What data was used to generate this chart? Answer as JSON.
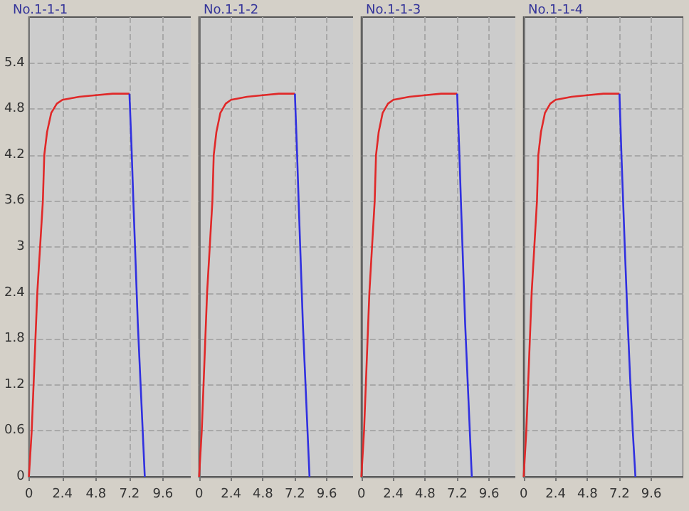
{
  "chart_data": [
    {
      "type": "line",
      "title": "No.1-1-1",
      "xlim": [
        0,
        12
      ],
      "xticks": [
        0,
        2.4,
        4.8,
        7.2,
        9.6
      ],
      "ylim": [
        0,
        6
      ],
      "yticks": [
        0,
        0.6,
        1.2,
        1.8,
        2.4,
        3,
        3.6,
        4.2,
        4.8,
        5.4
      ],
      "grid": true,
      "marker": "none",
      "series": [
        {
          "color": "#e02828",
          "x": [
            0,
            0.2,
            0.4,
            0.6,
            0.8,
            1.0,
            1.1,
            1.3,
            1.6,
            2.0,
            2.4,
            3.6,
            4.8,
            6.0,
            7.2
          ],
          "values": [
            0,
            0.6,
            1.5,
            2.4,
            3.0,
            3.6,
            4.2,
            4.5,
            4.75,
            4.87,
            4.92,
            4.96,
            4.98,
            5.0,
            5.0
          ]
        },
        {
          "color": "#3030e0",
          "x": [
            7.2,
            7.35,
            7.5,
            7.6,
            7.8,
            8.0,
            8.3
          ],
          "values": [
            5.0,
            4.3,
            3.5,
            3.0,
            2.0,
            1.2,
            0
          ]
        }
      ]
    },
    {
      "type": "line",
      "title": "No.1-1-2",
      "xlim": [
        0,
        12
      ],
      "xticks": [
        0,
        2.4,
        4.8,
        7.2,
        9.6
      ],
      "ylim": [
        0,
        6
      ],
      "yticks": [
        0,
        0.6,
        1.2,
        1.8,
        2.4,
        3,
        3.6,
        4.2,
        4.8,
        5.4
      ],
      "grid": true,
      "marker": "none",
      "tick_labels": "x",
      "series": [
        {
          "color": "#e02828",
          "x": [
            0,
            0.2,
            0.4,
            0.6,
            0.8,
            1.0,
            1.1,
            1.3,
            1.6,
            2.0,
            2.4,
            3.6,
            4.8,
            6.0,
            7.2
          ],
          "values": [
            0,
            0.6,
            1.5,
            2.4,
            3.0,
            3.6,
            4.2,
            4.5,
            4.75,
            4.87,
            4.92,
            4.96,
            4.98,
            5.0,
            5.0
          ]
        },
        {
          "color": "#3030e0",
          "x": [
            7.2,
            7.35,
            7.5,
            7.6,
            7.8,
            8.0,
            8.3
          ],
          "values": [
            5.0,
            4.3,
            3.5,
            3.0,
            2.0,
            1.2,
            0
          ]
        }
      ]
    },
    {
      "type": "line",
      "title": "No.1-1-3",
      "xlim": [
        0,
        12
      ],
      "xticks": [
        0,
        2.4,
        4.8,
        7.2,
        9.6
      ],
      "ylim": [
        0,
        6
      ],
      "yticks": [
        0,
        0.6,
        1.2,
        1.8,
        2.4,
        3,
        3.6,
        4.2,
        4.8,
        5.4
      ],
      "grid": true,
      "marker": "none",
      "tick_labels": "x",
      "series": [
        {
          "color": "#e02828",
          "x": [
            0,
            0.2,
            0.4,
            0.6,
            0.8,
            1.0,
            1.1,
            1.3,
            1.6,
            2.0,
            2.4,
            3.6,
            4.8,
            6.0,
            7.2
          ],
          "values": [
            0,
            0.6,
            1.5,
            2.4,
            3.0,
            3.6,
            4.2,
            4.5,
            4.75,
            4.87,
            4.92,
            4.96,
            4.98,
            5.0,
            5.0
          ]
        },
        {
          "color": "#3030e0",
          "x": [
            7.2,
            7.35,
            7.5,
            7.6,
            7.8,
            8.0,
            8.3
          ],
          "values": [
            5.0,
            4.3,
            3.5,
            3.0,
            2.0,
            1.2,
            0
          ]
        }
      ]
    },
    {
      "type": "line",
      "title": "No.1-1-4",
      "xlim": [
        0,
        12
      ],
      "xticks": [
        0,
        2.4,
        4.8,
        7.2,
        9.6
      ],
      "ylim": [
        0,
        6
      ],
      "yticks": [
        0,
        0.6,
        1.2,
        1.8,
        2.4,
        3,
        3.6,
        4.2,
        4.8,
        5.4
      ],
      "grid": true,
      "marker": "none",
      "tick_labels": "x",
      "series": [
        {
          "color": "#e02828",
          "x": [
            0,
            0.2,
            0.4,
            0.6,
            0.8,
            1.0,
            1.1,
            1.3,
            1.6,
            2.0,
            2.4,
            3.6,
            4.8,
            6.0,
            7.2
          ],
          "values": [
            0,
            0.6,
            1.5,
            2.4,
            3.0,
            3.6,
            4.2,
            4.5,
            4.75,
            4.87,
            4.92,
            4.96,
            4.98,
            5.0,
            5.0
          ]
        },
        {
          "color": "#3030e0",
          "x": [
            7.2,
            7.35,
            7.6,
            7.8,
            8.0,
            8.2,
            8.4
          ],
          "values": [
            5.0,
            4.2,
            3.0,
            2.1,
            1.3,
            0.6,
            0
          ]
        }
      ]
    }
  ]
}
